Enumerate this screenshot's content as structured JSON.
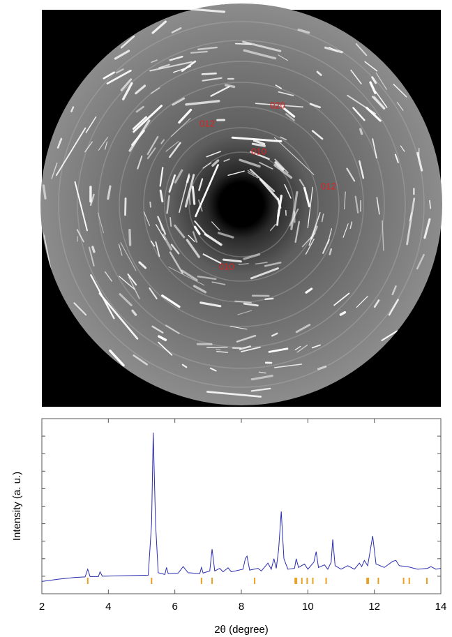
{
  "image": {
    "labels": [
      {
        "text": "020"
      },
      {
        "text": "012"
      },
      {
        "text": "010"
      },
      {
        "text": "012"
      },
      {
        "text": "010"
      }
    ]
  },
  "chart_data": {
    "type": "line",
    "xlabel": "2θ (degree)",
    "ylabel": "Intensity (a. u.)",
    "xlim": [
      2,
      14
    ],
    "xticks": [
      2,
      4,
      6,
      8,
      10,
      12,
      14
    ],
    "ylim": [
      0,
      100
    ],
    "yticks": [
      0,
      10,
      20,
      30,
      40,
      50,
      60,
      70,
      80,
      90,
      100
    ],
    "series": [
      {
        "color": "#2b2bb0",
        "x": [
          2.0,
          2.5,
          3.0,
          3.3,
          3.38,
          3.45,
          3.7,
          3.75,
          3.82,
          4.5,
          5.2,
          5.3,
          5.35,
          5.42,
          5.5,
          5.7,
          5.75,
          5.8,
          6.1,
          6.25,
          6.4,
          6.75,
          6.8,
          6.85,
          7.05,
          7.12,
          7.2,
          7.35,
          7.45,
          7.6,
          7.7,
          8.05,
          8.12,
          8.17,
          8.25,
          8.5,
          8.6,
          8.8,
          8.9,
          8.98,
          9.05,
          9.12,
          9.2,
          9.28,
          9.4,
          9.6,
          9.65,
          9.72,
          9.9,
          10.0,
          10.18,
          10.25,
          10.32,
          10.5,
          10.6,
          10.7,
          10.75,
          10.82,
          11.0,
          11.2,
          11.4,
          11.55,
          11.62,
          11.7,
          11.8,
          11.95,
          12.05,
          12.3,
          12.55,
          12.65,
          12.75,
          13.0,
          13.3,
          13.6,
          13.7,
          13.85,
          14.0
        ],
        "values": [
          7,
          8.3,
          9.3,
          9.6,
          14,
          9.8,
          9.8,
          12.5,
          10,
          10.3,
          10.6,
          40,
          92,
          40,
          12,
          11,
          15,
          11.5,
          11.8,
          15.5,
          12,
          11.5,
          15,
          11.8,
          13,
          25.5,
          13,
          14.5,
          12.5,
          14.8,
          12.5,
          14,
          20,
          21.5,
          13.5,
          14.5,
          13,
          17.5,
          14,
          20,
          14.5,
          25,
          47,
          20,
          14,
          14.5,
          20,
          15,
          17,
          14,
          18,
          24,
          15,
          16.5,
          14,
          18,
          31,
          16,
          14,
          16,
          14,
          17.5,
          15.5,
          19,
          16,
          33,
          17,
          15,
          18.5,
          19,
          16,
          15.5,
          14,
          14.5,
          15.5,
          14,
          14.5
        ]
      }
    ],
    "reflections": {
      "color": "#e8a020",
      "x": [
        3.38,
        5.3,
        6.8,
        7.12,
        8.4,
        9.62,
        9.66,
        9.82,
        9.98,
        10.15,
        10.55,
        11.78,
        11.82,
        12.12,
        12.88,
        13.05,
        13.58
      ]
    }
  }
}
